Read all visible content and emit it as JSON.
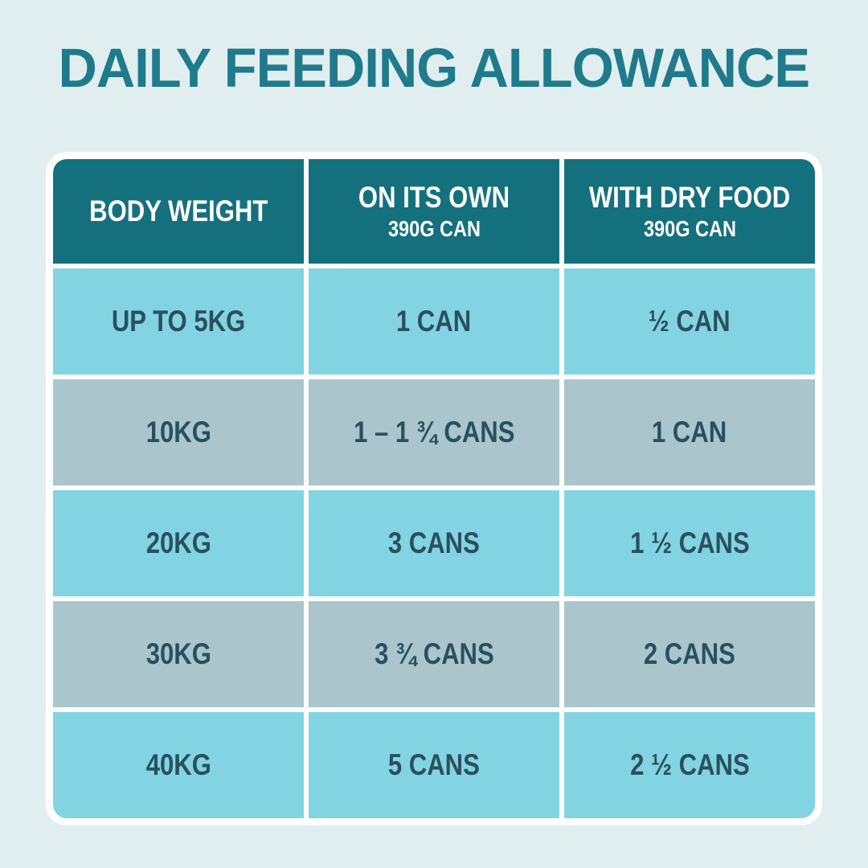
{
  "title": "DAILY FEEDING ALLOWANCE",
  "colors": {
    "page_background": "#e1eef0",
    "title_teal": "#1f7b8c",
    "header_teal": "#15707e",
    "row_cyan": "#82d4e2",
    "row_gray_blue": "#aac5cc",
    "cell_text": "#2a505e",
    "frame_white": "#ffffff"
  },
  "table": {
    "header": [
      {
        "label": "BODY WEIGHT",
        "sub": ""
      },
      {
        "label": "ON ITS OWN",
        "sub": "390G CAN"
      },
      {
        "label": "WITH DRY FOOD",
        "sub": "390G CAN"
      }
    ],
    "rows": [
      [
        "UP TO 5KG",
        "1 CAN",
        "½ CAN"
      ],
      [
        "10KG",
        "1 – 1 ¾ CANS",
        "1 CAN"
      ],
      [
        "20KG",
        "3 CANS",
        "1 ½ CANS"
      ],
      [
        "30KG",
        "3 ¾ CANS",
        "2 CANS"
      ],
      [
        "40KG",
        "5 CANS",
        "2 ½ CANS"
      ]
    ]
  },
  "chart_data": {
    "type": "table",
    "title": "DAILY FEEDING ALLOWANCE",
    "columns": [
      "BODY WEIGHT",
      "ON ITS OWN 390G CAN",
      "WITH DRY FOOD 390G CAN"
    ],
    "rows": [
      [
        "UP TO 5KG",
        "1 CAN",
        "½ CAN"
      ],
      [
        "10KG",
        "1 – 1 ¾ CANS",
        "1 CAN"
      ],
      [
        "20KG",
        "3 CANS",
        "1 ½ CANS"
      ],
      [
        "30KG",
        "3 ¾ CANS",
        "2 CANS"
      ],
      [
        "40KG",
        "5 CANS",
        "2 ½ CANS"
      ]
    ],
    "notes": "Feeding guide: cans per day by body weight; 390g can size; alternating cyan/gray-blue rows; teal header"
  }
}
